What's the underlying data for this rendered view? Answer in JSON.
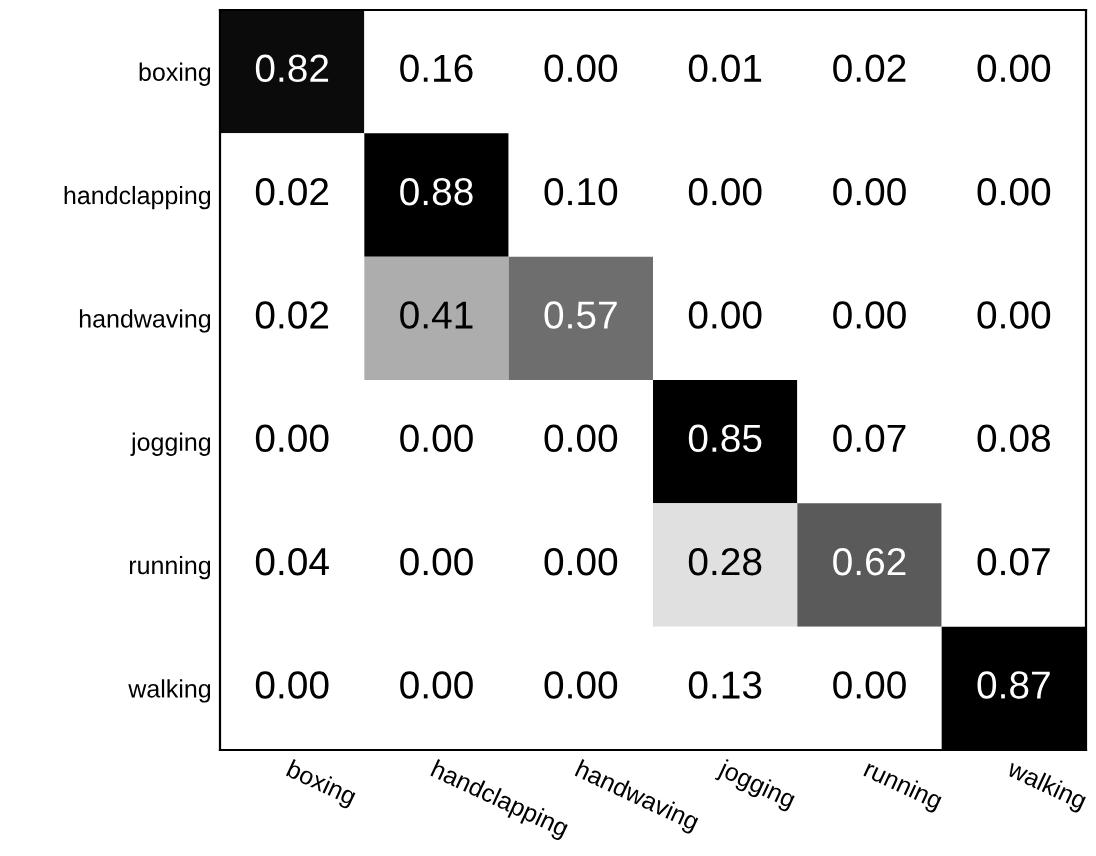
{
  "chart_data": {
    "type": "heatmap",
    "categories": [
      "boxing",
      "handclapping",
      "handwaving",
      "jogging",
      "running",
      "walking"
    ],
    "y_categories": [
      "boxing",
      "handclapping",
      "handwaving",
      "jogging",
      "running",
      "walking"
    ],
    "cells": [
      [
        0.82,
        0.16,
        0.0,
        0.01,
        0.02,
        0.0
      ],
      [
        0.02,
        0.88,
        0.1,
        0.0,
        0.0,
        0.0
      ],
      [
        0.02,
        0.41,
        0.57,
        0.0,
        0.0,
        0.0
      ],
      [
        0.0,
        0.0,
        0.0,
        0.85,
        0.07,
        0.08
      ],
      [
        0.04,
        0.0,
        0.0,
        0.28,
        0.62,
        0.07
      ],
      [
        0.0,
        0.0,
        0.0,
        0.13,
        0.0,
        0.87
      ]
    ],
    "cell_labels": [
      [
        "0.82",
        "0.16",
        "0.00",
        "0.01",
        "0.02",
        "0.00"
      ],
      [
        "0.02",
        "0.88",
        "0.10",
        "0.00",
        "0.00",
        "0.00"
      ],
      [
        "0.02",
        "0.41",
        "0.57",
        "0.00",
        "0.00",
        "0.00"
      ],
      [
        "0.00",
        "0.00",
        "0.00",
        "0.85",
        "0.07",
        "0.08"
      ],
      [
        "0.04",
        "0.00",
        "0.00",
        "0.28",
        "0.62",
        "0.07"
      ],
      [
        "0.00",
        "0.00",
        "0.00",
        "0.13",
        "0.00",
        "0.87"
      ]
    ]
  }
}
